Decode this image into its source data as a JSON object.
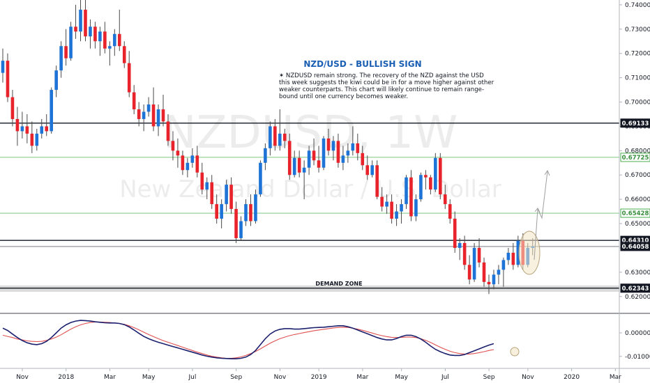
{
  "chart_data": {
    "type": "candlestick",
    "symbol_watermark": "NZDUSD, 1W",
    "name_watermark": "New Zealand Dollar / U.S. Dollar",
    "title": "NZD/USD - BULLISH SIGN",
    "note_lines": [
      "✶ NZDUSD remain strong. The recovery of the NZD against the USD",
      "this week suggests the kiwi could be in for a move higher against other",
      "weaker counterparts. This chart will likely continue to remain range-",
      "bound until one currency becomes weaker."
    ],
    "demand_zone_label": "DEMAND ZONE",
    "y_ticks": [
      "0.74000",
      "0.73000",
      "0.72000",
      "0.71000",
      "0.70000",
      "0.69000",
      "0.68000",
      "0.67000",
      "0.66000",
      "0.65000",
      "0.64000",
      "0.63000",
      "0.62000"
    ],
    "y_range": [
      0.6165,
      0.7414
    ],
    "x_ticks": [
      "Nov",
      "2018",
      "Mar",
      "May",
      "Jul",
      "Sep",
      "Nov",
      "2019",
      "Mar",
      "May",
      "Jul",
      "Sep",
      "Nov",
      "2020",
      "Mar"
    ],
    "x_tick_weeks": [
      0,
      9,
      18,
      26,
      35,
      44,
      53,
      61,
      70,
      78,
      87,
      96,
      104,
      113,
      122
    ],
    "price_levels": [
      {
        "value": 0.69133,
        "label": "0.69133",
        "style": "black"
      },
      {
        "value": 0.67725,
        "label": "0.67725",
        "style": "green"
      },
      {
        "value": 0.65428,
        "label": "0.65428",
        "style": "green"
      },
      {
        "value": 0.6431,
        "label": "0.64310",
        "style": "black"
      },
      {
        "value": 0.64058,
        "label": "0.64058",
        "style": "dark"
      },
      {
        "value": 0.62343,
        "label": "0.62343",
        "style": "black"
      }
    ],
    "candles": [
      [
        0.712,
        0.722,
        0.708,
        0.717
      ],
      [
        0.717,
        0.72,
        0.7,
        0.702
      ],
      [
        0.702,
        0.705,
        0.69,
        0.693
      ],
      [
        0.693,
        0.698,
        0.682,
        0.688
      ],
      [
        0.688,
        0.696,
        0.685,
        0.69
      ],
      [
        0.69,
        0.695,
        0.683,
        0.687
      ],
      [
        0.687,
        0.692,
        0.679,
        0.682
      ],
      [
        0.682,
        0.689,
        0.68,
        0.687
      ],
      [
        0.687,
        0.693,
        0.685,
        0.69
      ],
      [
        0.69,
        0.695,
        0.686,
        0.688
      ],
      [
        0.688,
        0.706,
        0.687,
        0.705
      ],
      [
        0.705,
        0.715,
        0.702,
        0.713
      ],
      [
        0.713,
        0.725,
        0.71,
        0.723
      ],
      [
        0.723,
        0.73,
        0.715,
        0.718
      ],
      [
        0.718,
        0.733,
        0.717,
        0.731
      ],
      [
        0.731,
        0.74,
        0.726,
        0.729
      ],
      [
        0.729,
        0.742,
        0.725,
        0.738
      ],
      [
        0.738,
        0.742,
        0.725,
        0.727
      ],
      [
        0.727,
        0.734,
        0.722,
        0.731
      ],
      [
        0.731,
        0.733,
        0.722,
        0.725
      ],
      [
        0.725,
        0.731,
        0.719,
        0.729
      ],
      [
        0.729,
        0.733,
        0.72,
        0.722
      ],
      [
        0.722,
        0.725,
        0.715,
        0.723
      ],
      [
        0.723,
        0.73,
        0.719,
        0.728
      ],
      [
        0.728,
        0.738,
        0.721,
        0.723
      ],
      [
        0.723,
        0.725,
        0.714,
        0.716
      ],
      [
        0.716,
        0.721,
        0.702,
        0.704
      ],
      [
        0.704,
        0.707,
        0.695,
        0.697
      ],
      [
        0.697,
        0.7,
        0.69,
        0.693
      ],
      [
        0.693,
        0.699,
        0.688,
        0.696
      ],
      [
        0.696,
        0.702,
        0.694,
        0.699
      ],
      [
        0.699,
        0.706,
        0.688,
        0.69
      ],
      [
        0.69,
        0.699,
        0.686,
        0.697
      ],
      [
        0.697,
        0.703,
        0.69,
        0.692
      ],
      [
        0.692,
        0.695,
        0.682,
        0.684
      ],
      [
        0.684,
        0.688,
        0.676,
        0.68
      ],
      [
        0.68,
        0.685,
        0.673,
        0.678
      ],
      [
        0.678,
        0.68,
        0.67,
        0.672
      ],
      [
        0.672,
        0.677,
        0.669,
        0.675
      ],
      [
        0.675,
        0.681,
        0.673,
        0.678
      ],
      [
        0.678,
        0.682,
        0.669,
        0.671
      ],
      [
        0.671,
        0.675,
        0.662,
        0.664
      ],
      [
        0.664,
        0.669,
        0.66,
        0.667
      ],
      [
        0.667,
        0.67,
        0.656,
        0.658
      ],
      [
        0.658,
        0.662,
        0.65,
        0.652
      ],
      [
        0.652,
        0.66,
        0.648,
        0.658
      ],
      [
        0.658,
        0.668,
        0.655,
        0.666
      ],
      [
        0.666,
        0.669,
        0.654,
        0.656
      ],
      [
        0.656,
        0.659,
        0.642,
        0.644
      ],
      [
        0.644,
        0.653,
        0.643,
        0.651
      ],
      [
        0.651,
        0.66,
        0.649,
        0.658
      ],
      [
        0.658,
        0.662,
        0.649,
        0.651
      ],
      [
        0.651,
        0.664,
        0.65,
        0.662
      ],
      [
        0.662,
        0.676,
        0.661,
        0.675
      ],
      [
        0.675,
        0.683,
        0.672,
        0.681
      ],
      [
        0.681,
        0.692,
        0.678,
        0.69
      ],
      [
        0.69,
        0.693,
        0.68,
        0.682
      ],
      [
        0.682,
        0.697,
        0.68,
        0.687
      ],
      [
        0.687,
        0.689,
        0.681,
        0.684
      ],
      [
        0.684,
        0.687,
        0.668,
        0.67
      ],
      [
        0.67,
        0.68,
        0.669,
        0.677
      ],
      [
        0.677,
        0.68,
        0.669,
        0.671
      ],
      [
        0.671,
        0.676,
        0.66,
        0.673
      ],
      [
        0.673,
        0.682,
        0.67,
        0.68
      ],
      [
        0.68,
        0.685,
        0.674,
        0.676
      ],
      [
        0.676,
        0.682,
        0.671,
        0.673
      ],
      [
        0.673,
        0.686,
        0.672,
        0.685
      ],
      [
        0.685,
        0.689,
        0.678,
        0.68
      ],
      [
        0.68,
        0.686,
        0.676,
        0.684
      ],
      [
        0.684,
        0.687,
        0.673,
        0.675
      ],
      [
        0.675,
        0.682,
        0.672,
        0.678
      ],
      [
        0.678,
        0.683,
        0.675,
        0.68
      ],
      [
        0.68,
        0.69,
        0.678,
        0.683
      ],
      [
        0.683,
        0.687,
        0.676,
        0.679
      ],
      [
        0.679,
        0.682,
        0.672,
        0.674
      ],
      [
        0.674,
        0.678,
        0.668,
        0.67
      ],
      [
        0.67,
        0.676,
        0.669,
        0.674
      ],
      [
        0.674,
        0.676,
        0.66,
        0.661
      ],
      [
        0.661,
        0.665,
        0.655,
        0.657
      ],
      [
        0.657,
        0.662,
        0.654,
        0.659
      ],
      [
        0.659,
        0.662,
        0.65,
        0.652
      ],
      [
        0.652,
        0.658,
        0.649,
        0.655
      ],
      [
        0.655,
        0.66,
        0.65,
        0.658
      ],
      [
        0.658,
        0.67,
        0.656,
        0.669
      ],
      [
        0.669,
        0.672,
        0.651,
        0.653
      ],
      [
        0.653,
        0.662,
        0.651,
        0.66
      ],
      [
        0.66,
        0.671,
        0.659,
        0.67
      ],
      [
        0.67,
        0.672,
        0.664,
        0.669
      ],
      [
        0.669,
        0.67,
        0.662,
        0.664
      ],
      [
        0.664,
        0.679,
        0.663,
        0.677
      ],
      [
        0.677,
        0.679,
        0.66,
        0.662
      ],
      [
        0.662,
        0.666,
        0.656,
        0.658
      ],
      [
        0.658,
        0.66,
        0.65,
        0.652
      ],
      [
        0.652,
        0.655,
        0.638,
        0.64
      ],
      [
        0.64,
        0.644,
        0.635,
        0.642
      ],
      [
        0.642,
        0.645,
        0.631,
        0.633
      ],
      [
        0.633,
        0.637,
        0.625,
        0.627
      ],
      [
        0.627,
        0.642,
        0.626,
        0.64
      ],
      [
        0.64,
        0.644,
        0.632,
        0.634
      ],
      [
        0.634,
        0.636,
        0.624,
        0.626
      ],
      [
        0.626,
        0.629,
        0.621,
        0.625
      ],
      [
        0.625,
        0.631,
        0.623,
        0.629
      ],
      [
        0.629,
        0.633,
        0.625,
        0.631
      ],
      [
        0.631,
        0.636,
        0.624,
        0.635
      ],
      [
        0.635,
        0.64,
        0.633,
        0.638
      ],
      [
        0.638,
        0.642,
        0.631,
        0.633
      ],
      [
        0.633,
        0.645,
        0.632,
        0.643
      ],
      [
        0.643,
        0.646,
        0.631,
        0.633
      ],
      [
        0.633,
        0.642,
        0.632,
        0.64
      ],
      [
        0.64,
        0.644,
        0.637,
        0.6406
      ]
    ],
    "oscillator": {
      "y_ticks": [
        "0.00000",
        "-0.01000"
      ],
      "y_range": [
        -0.0145,
        0.0068
      ],
      "fast": [
        0.002,
        0.001,
        -0.0005,
        -0.002,
        -0.0033,
        -0.0042,
        -0.0048,
        -0.005,
        -0.0046,
        -0.0036,
        -0.002,
        0.0,
        0.002,
        0.0034,
        0.0044,
        0.005,
        0.0053,
        0.0052,
        0.005,
        0.0047,
        0.0045,
        0.0043,
        0.0042,
        0.0042,
        0.004,
        0.0035,
        0.0025,
        0.0012,
        -0.0002,
        -0.0015,
        -0.0025,
        -0.0033,
        -0.004,
        -0.0046,
        -0.0052,
        -0.0058,
        -0.0064,
        -0.007,
        -0.0076,
        -0.0082,
        -0.0088,
        -0.0094,
        -0.0099,
        -0.0103,
        -0.0106,
        -0.0108,
        -0.0109,
        -0.011,
        -0.011,
        -0.0108,
        -0.0103,
        -0.0092,
        -0.0075,
        -0.005,
        -0.0025,
        -0.0005,
        0.0008,
        0.0015,
        0.0018,
        0.0018,
        0.0016,
        0.0016,
        0.0018,
        0.002,
        0.0022,
        0.0023,
        0.0024,
        0.0026,
        0.0028,
        0.003,
        0.003,
        0.0026,
        0.002,
        0.0012,
        0.0004,
        -0.0004,
        -0.0012,
        -0.002,
        -0.0026,
        -0.003,
        -0.003,
        -0.0024,
        -0.0016,
        -0.001,
        -0.001,
        -0.0016,
        -0.0026,
        -0.004,
        -0.0056,
        -0.007,
        -0.008,
        -0.0088,
        -0.0094,
        -0.0096,
        -0.0096,
        -0.0092,
        -0.0084,
        -0.0076,
        -0.0068,
        -0.006,
        -0.0052,
        -0.0046
      ],
      "slow": [
        -0.001,
        -0.0015,
        -0.002,
        -0.0026,
        -0.003,
        -0.0034,
        -0.0036,
        -0.0037,
        -0.0036,
        -0.0032,
        -0.0026,
        -0.0018,
        -0.0008,
        0.0004,
        0.0016,
        0.0026,
        0.0034,
        0.004,
        0.0044,
        0.0046,
        0.0046,
        0.0045,
        0.0044,
        0.0042,
        0.004,
        0.0036,
        0.003,
        0.0022,
        0.0013,
        0.0003,
        -0.0007,
        -0.0016,
        -0.0025,
        -0.0033,
        -0.004,
        -0.0047,
        -0.0054,
        -0.0061,
        -0.0068,
        -0.0075,
        -0.0082,
        -0.0088,
        -0.0094,
        -0.0099,
        -0.0103,
        -0.0106,
        -0.0108,
        -0.0108,
        -0.0106,
        -0.0102,
        -0.0096,
        -0.0088,
        -0.0079,
        -0.0068,
        -0.0056,
        -0.0044,
        -0.0034,
        -0.0025,
        -0.0018,
        -0.0012,
        -0.0007,
        -0.0003,
        0.0001,
        0.0005,
        0.0009,
        0.0012,
        0.0015,
        0.0018,
        0.0021,
        0.0023,
        0.0024,
        0.0023,
        0.002,
        0.0016,
        0.0011,
        0.0005,
        -0.0001,
        -0.0007,
        -0.0012,
        -0.0016,
        -0.0019,
        -0.002,
        -0.0019,
        -0.0018,
        -0.0018,
        -0.002,
        -0.0025,
        -0.0032,
        -0.0041,
        -0.0051,
        -0.0061,
        -0.007,
        -0.0078,
        -0.0084,
        -0.0088,
        -0.009,
        -0.009,
        -0.0088,
        -0.0084,
        -0.008,
        -0.0075,
        -0.0071
      ]
    }
  }
}
